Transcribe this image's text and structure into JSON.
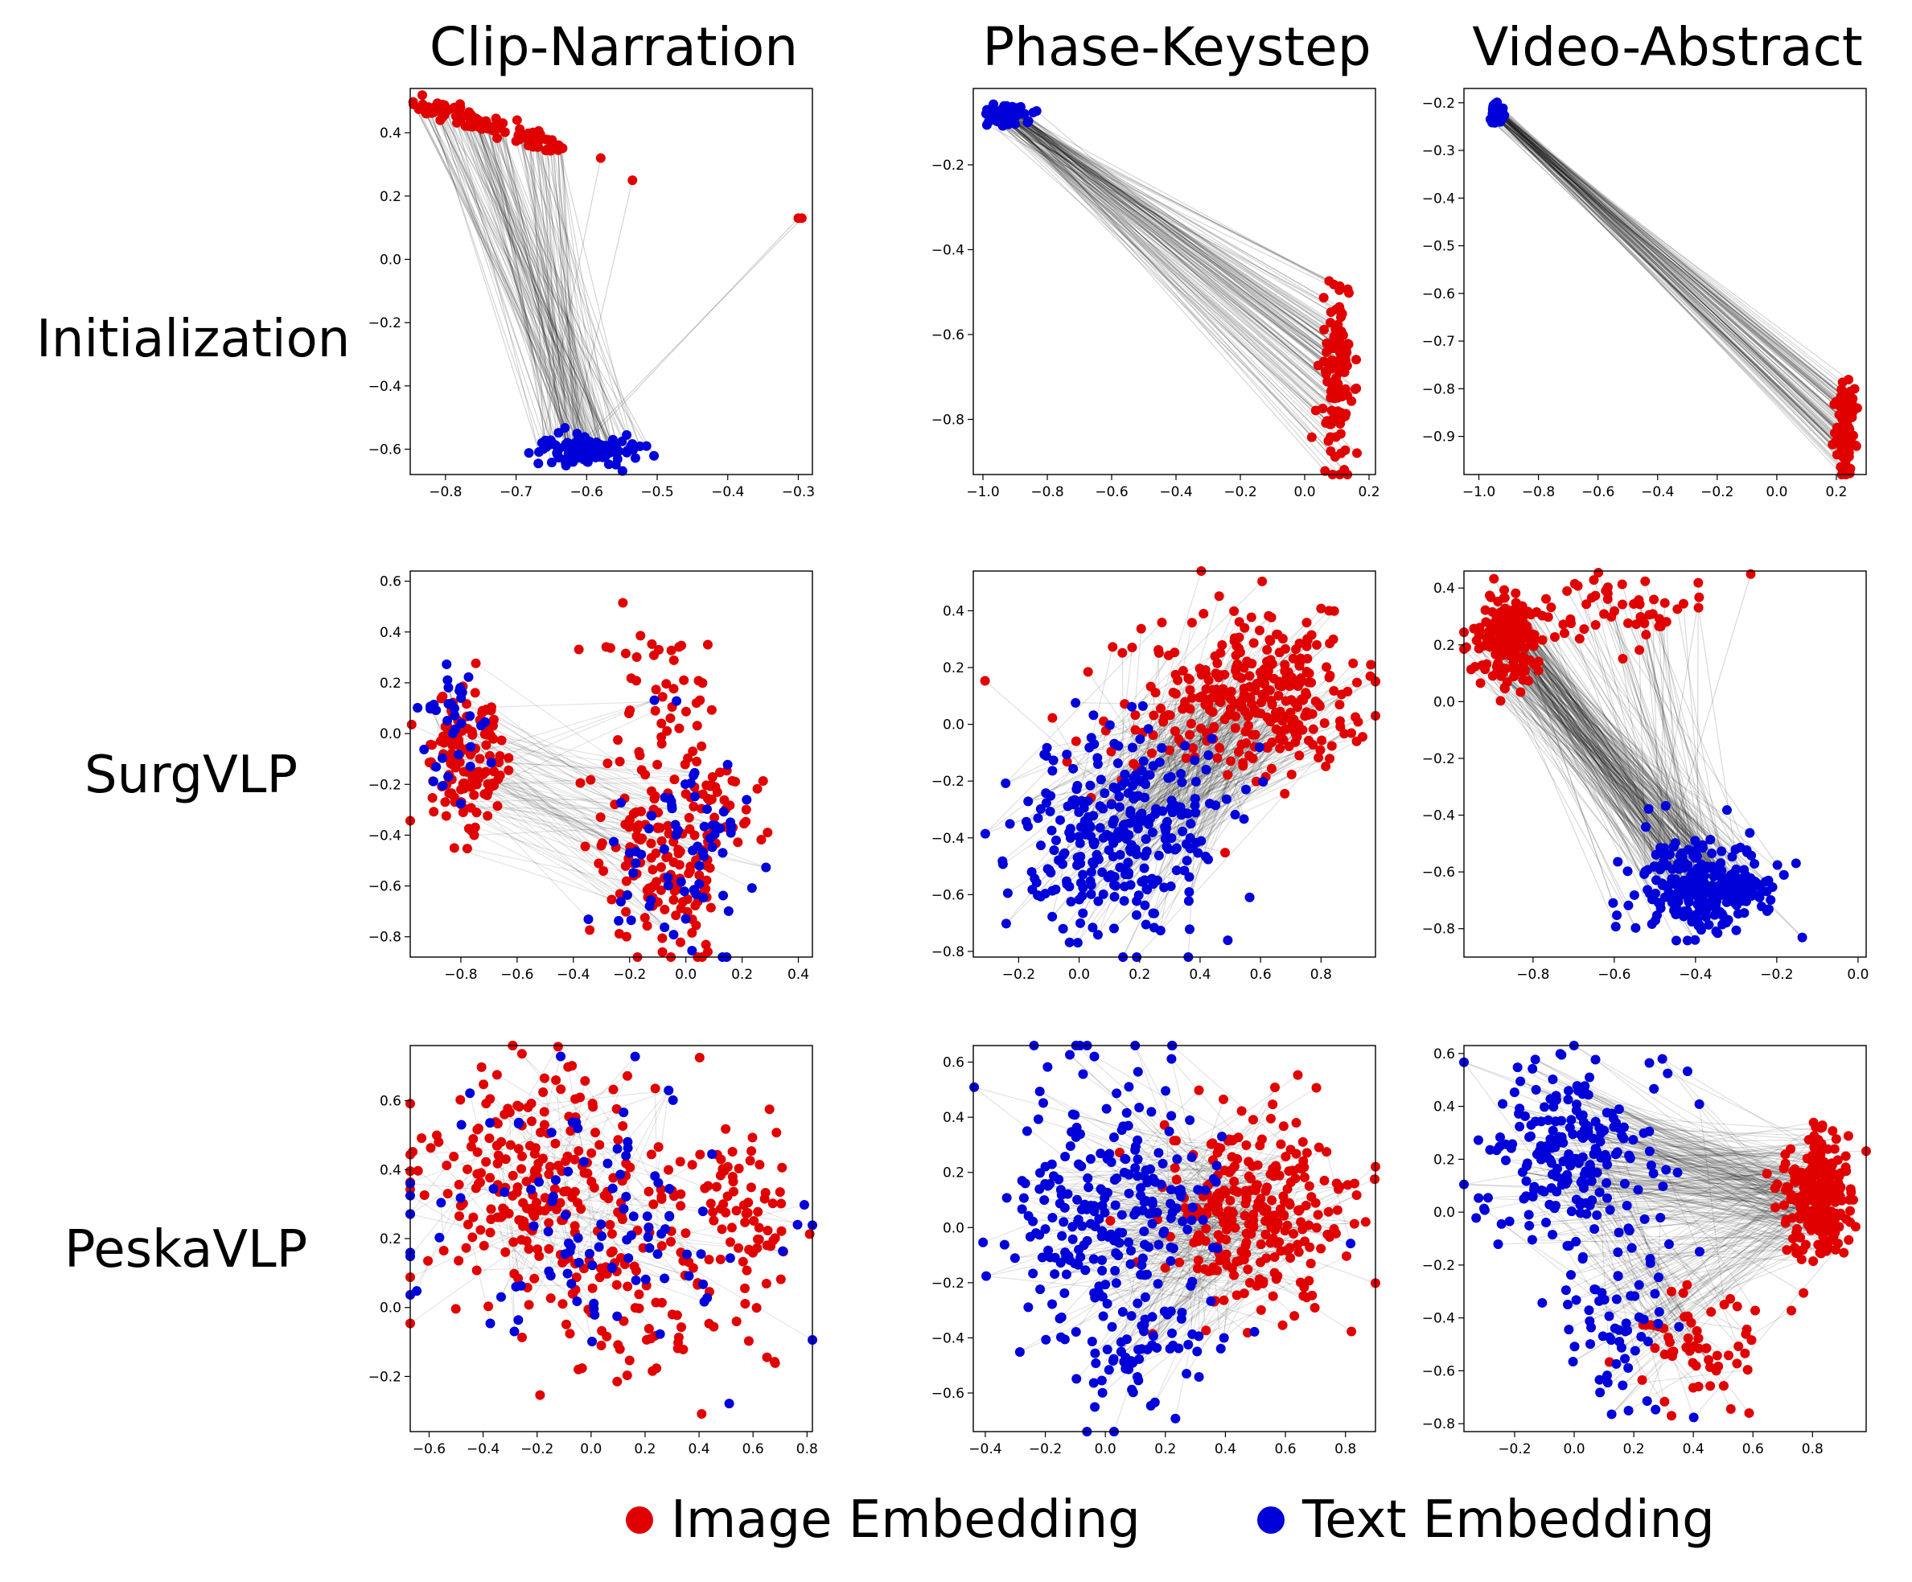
{
  "column_titles": [
    "Clip-Narration",
    "Phase-Keystep",
    "Video-Abstract"
  ],
  "row_titles": [
    "Initialization",
    "SurgVLP",
    "PeskaVLP"
  ],
  "legend": {
    "image_label": "Image Embedding",
    "text_label": "Text Embedding",
    "image_color": "#e00000",
    "text_color": "#0000d8"
  },
  "chart_data": [
    {
      "type": "scatter",
      "row": "Initialization",
      "column": "Clip-Narration",
      "xlim": [
        -0.85,
        -0.28
      ],
      "ylim": [
        -0.68,
        0.54
      ],
      "xticks": [
        -0.8,
        -0.7,
        -0.6,
        -0.5,
        -0.4,
        -0.3
      ],
      "yticks": [
        -0.6,
        -0.4,
        -0.2,
        0.0,
        0.2,
        0.4
      ],
      "xtick_labels": [
        "−0.8",
        "−0.7",
        "−0.6",
        "−0.5",
        "−0.4",
        "−0.3"
      ],
      "ytick_labels": [
        "−0.6",
        "−0.4",
        "−0.2",
        "0.0",
        "0.2",
        "0.4"
      ],
      "image_cluster": {
        "kind": "band",
        "x0": -0.83,
        "y0": 0.49,
        "x1": -0.63,
        "y1": 0.34,
        "spread": 0.015,
        "n": 110
      },
      "image_outliers": [
        [
          -0.58,
          0.32
        ],
        [
          -0.535,
          0.25
        ],
        [
          -0.3,
          0.13
        ],
        [
          -0.295,
          0.13
        ]
      ],
      "text_cluster": {
        "kind": "blob",
        "cx": -0.6,
        "cy": -0.6,
        "sx": 0.035,
        "sy": 0.025,
        "n": 110
      },
      "link_density": 0.88
    },
    {
      "type": "scatter",
      "row": "Initialization",
      "column": "Phase-Keystep",
      "xlim": [
        -1.03,
        0.22
      ],
      "ylim": [
        -0.93,
        -0.02
      ],
      "xticks": [
        -1.0,
        -0.8,
        -0.6,
        -0.4,
        -0.2,
        0.0,
        0.2
      ],
      "yticks": [
        -0.8,
        -0.6,
        -0.4,
        -0.2
      ],
      "xtick_labels": [
        "−1.0",
        "−0.8",
        "−0.6",
        "−0.4",
        "−0.2",
        "0.0",
        "0.2"
      ],
      "ytick_labels": [
        "−0.8",
        "−0.6",
        "−0.4",
        "−0.2"
      ],
      "image_cluster": {
        "kind": "blob",
        "cx": 0.1,
        "cy": -0.7,
        "sx": 0.025,
        "sy": 0.1,
        "n": 130
      },
      "image_outliers": [],
      "text_cluster": {
        "kind": "blob",
        "cx": -0.93,
        "cy": -0.08,
        "sx": 0.03,
        "sy": 0.012,
        "n": 100
      },
      "link_density": 0.8
    },
    {
      "type": "scatter",
      "row": "Initialization",
      "column": "Video-Abstract",
      "xlim": [
        -1.05,
        0.3
      ],
      "ylim": [
        -0.98,
        -0.17
      ],
      "xticks": [
        -1.0,
        -0.8,
        -0.6,
        -0.4,
        -0.2,
        0.0,
        0.2
      ],
      "yticks": [
        -0.9,
        -0.8,
        -0.7,
        -0.6,
        -0.5,
        -0.4,
        -0.3,
        -0.2
      ],
      "xtick_labels": [
        "−1.0",
        "−0.8",
        "−0.6",
        "−0.4",
        "−0.2",
        "0.0",
        "0.2"
      ],
      "ytick_labels": [
        "−0.9",
        "−0.8",
        "−0.7",
        "−0.6",
        "−0.5",
        "−0.4",
        "−0.3",
        "−0.2"
      ],
      "image_cluster": {
        "kind": "blob",
        "cx": 0.23,
        "cy": -0.88,
        "sx": 0.015,
        "sy": 0.05,
        "n": 110
      },
      "image_outliers": [],
      "text_cluster": {
        "kind": "blob",
        "cx": -0.94,
        "cy": -0.22,
        "sx": 0.01,
        "sy": 0.01,
        "n": 80
      },
      "link_density": 0.85
    },
    {
      "type": "scatter",
      "row": "SurgVLP",
      "column": "Clip-Narration",
      "xlim": [
        -0.98,
        0.45
      ],
      "ylim": [
        -0.88,
        0.64
      ],
      "xticks": [
        -0.8,
        -0.6,
        -0.4,
        -0.2,
        0.0,
        0.2,
        0.4
      ],
      "yticks": [
        -0.8,
        -0.6,
        -0.4,
        -0.2,
        0.0,
        0.2,
        0.4,
        0.6
      ],
      "xtick_labels": [
        "−0.8",
        "−0.6",
        "−0.4",
        "−0.2",
        "0.0",
        "0.2",
        "0.4"
      ],
      "ytick_labels": [
        "−0.8",
        "−0.6",
        "−0.4",
        "−0.2",
        "0.0",
        "0.2",
        "0.4",
        "0.6"
      ],
      "image_cluster": {
        "kind": "multi",
        "blobs": [
          [
            -0.77,
            -0.08,
            0.07,
            0.14,
            140
          ],
          [
            -0.05,
            -0.45,
            0.13,
            0.22,
            180
          ],
          [
            -0.1,
            0.2,
            0.12,
            0.18,
            40
          ]
        ]
      },
      "image_outliers": [],
      "text_cluster": {
        "kind": "multi",
        "blobs": [
          [
            -0.82,
            0.05,
            0.07,
            0.15,
            35
          ],
          [
            0.0,
            -0.45,
            0.14,
            0.22,
            70
          ]
        ]
      },
      "link_density": 0.3
    },
    {
      "type": "scatter",
      "row": "SurgVLP",
      "column": "Phase-Keystep",
      "xlim": [
        -0.35,
        0.98
      ],
      "ylim": [
        -0.82,
        0.54
      ],
      "xticks": [
        -0.2,
        0.0,
        0.2,
        0.4,
        0.6,
        0.8
      ],
      "yticks": [
        -0.8,
        -0.6,
        -0.4,
        -0.2,
        0.0,
        0.2,
        0.4
      ],
      "xtick_labels": [
        "−0.2",
        "0.0",
        "0.2",
        "0.4",
        "0.6",
        "0.8"
      ],
      "ytick_labels": [
        "−0.8",
        "−0.6",
        "−0.4",
        "−0.2",
        "0.0",
        "0.2",
        "0.4"
      ],
      "image_cluster": {
        "kind": "multi",
        "blobs": [
          [
            0.62,
            0.1,
            0.16,
            0.14,
            260
          ],
          [
            0.3,
            0.05,
            0.18,
            0.18,
            60
          ]
        ]
      },
      "image_outliers": [],
      "text_cluster": {
        "kind": "multi",
        "blobs": [
          [
            0.15,
            -0.38,
            0.17,
            0.18,
            300
          ]
        ]
      },
      "link_density": 0.45
    },
    {
      "type": "scatter",
      "row": "SurgVLP",
      "column": "Video-Abstract",
      "xlim": [
        -0.97,
        0.02
      ],
      "ylim": [
        -0.9,
        0.46
      ],
      "xticks": [
        -0.8,
        -0.6,
        -0.4,
        -0.2,
        0.0
      ],
      "yticks": [
        -0.8,
        -0.6,
        -0.4,
        -0.2,
        0.0,
        0.2,
        0.4
      ],
      "xtick_labels": [
        "−0.8",
        "−0.6",
        "−0.4",
        "−0.2",
        "0.0"
      ],
      "ytick_labels": [
        "−0.8",
        "−0.6",
        "−0.4",
        "−0.2",
        "0.0",
        "0.2",
        "0.4"
      ],
      "image_cluster": {
        "kind": "multi",
        "blobs": [
          [
            -0.86,
            0.22,
            0.04,
            0.08,
            160
          ],
          [
            -0.62,
            0.32,
            0.12,
            0.06,
            60
          ]
        ]
      },
      "image_outliers": [],
      "text_cluster": {
        "kind": "multi",
        "blobs": [
          [
            -0.38,
            -0.65,
            0.09,
            0.08,
            280
          ]
        ]
      },
      "link_density": 0.7
    },
    {
      "type": "scatter",
      "row": "PeskaVLP",
      "column": "Clip-Narration",
      "xlim": [
        -0.67,
        0.82
      ],
      "ylim": [
        -0.36,
        0.76
      ],
      "xticks": [
        -0.6,
        -0.4,
        -0.2,
        0.0,
        0.2,
        0.4,
        0.6,
        0.8
      ],
      "yticks": [
        -0.2,
        0.0,
        0.2,
        0.4,
        0.6
      ],
      "xtick_labels": [
        "−0.6",
        "−0.4",
        "−0.2",
        "0.0",
        "0.2",
        "0.4",
        "0.6",
        "0.8"
      ],
      "ytick_labels": [
        "−0.2",
        "0.0",
        "0.2",
        "0.4",
        "0.6"
      ],
      "image_cluster": {
        "kind": "multi",
        "blobs": [
          [
            -0.2,
            0.38,
            0.22,
            0.16,
            220
          ],
          [
            0.55,
            0.3,
            0.1,
            0.12,
            70
          ],
          [
            0.15,
            0.05,
            0.25,
            0.15,
            100
          ]
        ]
      },
      "image_outliers": [],
      "text_cluster": {
        "kind": "multi",
        "blobs": [
          [
            0.0,
            0.25,
            0.35,
            0.2,
            110
          ]
        ]
      },
      "link_density": 0.25
    },
    {
      "type": "scatter",
      "row": "PeskaVLP",
      "column": "Phase-Keystep",
      "xlim": [
        -0.44,
        0.9
      ],
      "ylim": [
        -0.74,
        0.66
      ],
      "xticks": [
        -0.4,
        -0.2,
        0.0,
        0.2,
        0.4,
        0.6,
        0.8
      ],
      "yticks": [
        -0.6,
        -0.4,
        -0.2,
        0.0,
        0.2,
        0.4,
        0.6
      ],
      "xtick_labels": [
        "−0.4",
        "−0.2",
        "0.0",
        "0.2",
        "0.4",
        "0.6",
        "0.8"
      ],
      "ytick_labels": [
        "−0.6",
        "−0.4",
        "−0.2",
        "0.0",
        "0.2",
        "0.4",
        "0.6"
      ],
      "image_cluster": {
        "kind": "multi",
        "blobs": [
          [
            0.5,
            0.05,
            0.16,
            0.17,
            280
          ]
        ]
      },
      "image_outliers": [],
      "text_cluster": {
        "kind": "multi",
        "blobs": [
          [
            0.0,
            0.05,
            0.18,
            0.25,
            260
          ],
          [
            0.15,
            -0.45,
            0.1,
            0.12,
            50
          ]
        ]
      },
      "link_density": 0.35
    },
    {
      "type": "scatter",
      "row": "PeskaVLP",
      "column": "Video-Abstract",
      "xlim": [
        -0.37,
        0.98
      ],
      "ylim": [
        -0.83,
        0.63
      ],
      "xticks": [
        -0.2,
        0.0,
        0.2,
        0.4,
        0.6,
        0.8
      ],
      "yticks": [
        -0.8,
        -0.6,
        -0.4,
        -0.2,
        0.0,
        0.2,
        0.4,
        0.6
      ],
      "xtick_labels": [
        "−0.2",
        "0.0",
        "0.2",
        "0.4",
        "0.6",
        "0.8"
      ],
      "ytick_labels": [
        "−0.8",
        "−0.6",
        "−0.4",
        "−0.2",
        "0.0",
        "0.2",
        "0.4",
        "0.6"
      ],
      "image_cluster": {
        "kind": "multi",
        "blobs": [
          [
            0.82,
            0.05,
            0.05,
            0.12,
            260
          ],
          [
            0.4,
            -0.5,
            0.12,
            0.12,
            60
          ]
        ]
      },
      "image_outliers": [],
      "text_cluster": {
        "kind": "multi",
        "blobs": [
          [
            0.0,
            0.2,
            0.15,
            0.18,
            220
          ],
          [
            0.15,
            -0.45,
            0.1,
            0.15,
            60
          ]
        ]
      },
      "link_density": 0.45
    }
  ]
}
